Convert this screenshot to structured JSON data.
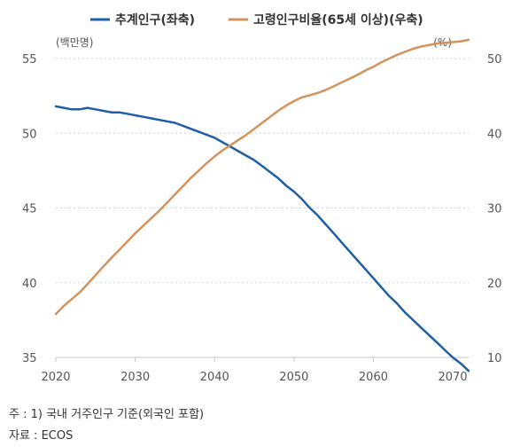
{
  "chart_data": {
    "type": "line",
    "x": [
      2020,
      2021,
      2022,
      2023,
      2024,
      2025,
      2026,
      2027,
      2028,
      2029,
      2030,
      2031,
      2032,
      2033,
      2034,
      2035,
      2036,
      2037,
      2038,
      2039,
      2040,
      2041,
      2042,
      2043,
      2044,
      2045,
      2046,
      2047,
      2048,
      2049,
      2050,
      2051,
      2052,
      2053,
      2054,
      2055,
      2056,
      2057,
      2058,
      2059,
      2060,
      2061,
      2062,
      2063,
      2064,
      2065,
      2066,
      2067,
      2068,
      2069,
      2070,
      2071,
      2072
    ],
    "series": [
      {
        "name": "추계인구(좌축)",
        "axis": "left",
        "color": "#1f5fa6",
        "values": [
          51.8,
          51.7,
          51.6,
          51.6,
          51.7,
          51.6,
          51.5,
          51.4,
          51.4,
          51.3,
          51.2,
          51.1,
          51.0,
          50.9,
          50.8,
          50.7,
          50.5,
          50.3,
          50.1,
          49.9,
          49.7,
          49.4,
          49.1,
          48.8,
          48.5,
          48.2,
          47.8,
          47.4,
          47.0,
          46.5,
          46.1,
          45.6,
          45.0,
          44.5,
          43.9,
          43.3,
          42.7,
          42.1,
          41.5,
          40.9,
          40.3,
          39.7,
          39.1,
          38.6,
          38.0,
          37.5,
          37.0,
          36.5,
          36.0,
          35.5,
          35.0,
          34.6,
          34.1
        ]
      },
      {
        "name": "고령인구비율(65세 이상)(우축)",
        "axis": "right",
        "color": "#d4935c",
        "values": [
          15.8,
          16.9,
          17.8,
          18.7,
          19.8,
          21.0,
          22.2,
          23.3,
          24.4,
          25.5,
          26.6,
          27.6,
          28.6,
          29.6,
          30.7,
          31.8,
          32.9,
          34.0,
          35.0,
          36.0,
          36.9,
          37.7,
          38.4,
          39.1,
          39.8,
          40.6,
          41.4,
          42.2,
          43.0,
          43.7,
          44.3,
          44.8,
          45.1,
          45.4,
          45.8,
          46.3,
          46.8,
          47.3,
          47.8,
          48.4,
          48.9,
          49.5,
          50.0,
          50.5,
          50.9,
          51.3,
          51.6,
          51.8,
          52.0,
          52.1,
          52.2,
          52.3,
          52.5
        ]
      }
    ],
    "y_left": {
      "unit": "(백만명)",
      "ticks": [
        "55",
        "50",
        "45",
        "40",
        "35"
      ],
      "range": [
        35,
        55
      ]
    },
    "y_right": {
      "unit": "(%)",
      "ticks": [
        "50",
        "40",
        "30",
        "20",
        "10"
      ],
      "range": [
        10,
        50
      ]
    },
    "x_ticks": [
      "2020",
      "2030",
      "2040",
      "2050",
      "2060",
      "2070"
    ],
    "x_range": [
      2020,
      2072
    ],
    "grid": "horizontal dashed",
    "legend_position": "top"
  },
  "footnote": "주 : 1)  국내 거주인구 기준(외국인 포함)",
  "source": "자료 :  ECOS"
}
